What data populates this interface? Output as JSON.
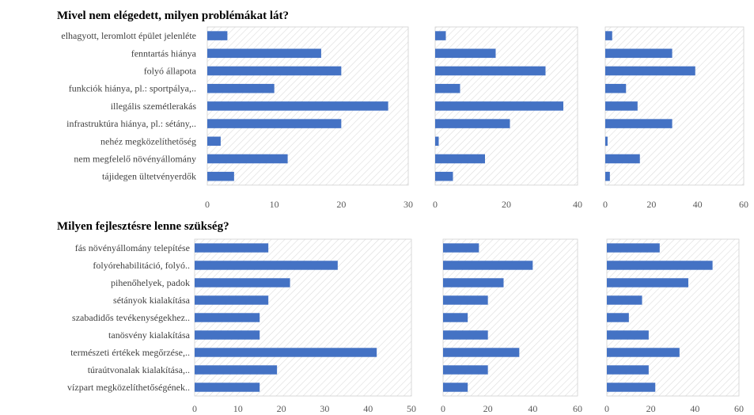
{
  "colors": {
    "bar": "#4472C4",
    "plot_hatch": "#d9d9d9",
    "plot_border": "#d0d0d0",
    "plot_background": "#ffffff"
  },
  "sections": [
    {
      "title": "Mivel nem elégedett, milyen problémákat lát?",
      "categories": [
        "elhagyott, leromlott épület jelenléte",
        "fenntartás hiánya",
        "folyó állapota",
        "funkciók hiánya, pl.: sportpálya,..",
        "illegális szemétlerakás",
        "infrastruktúra hiánya, pl.: sétány,..",
        "nehéz megközelíthetőség",
        "nem megfelelő növényállomány",
        "tájidegen ültetvényerdők"
      ]
    },
    {
      "title": "Milyen fejlesztésre lenne szükség?",
      "categories": [
        "fás növényállomány telepítése",
        "folyórehabilitáció, folyó..",
        "pihenőhelyek, padok",
        "sétányok kialakítása",
        "szabadidős tevékenységekhez..",
        "tanösvény kialakítása",
        "természeti értékek megőrzése,..",
        "túraútvonalak kialakítása,..",
        "vízpart megközelíthetőségének.."
      ]
    }
  ],
  "chart_data": [
    {
      "type": "bar",
      "orientation": "horizontal",
      "section": 0,
      "values": [
        3,
        17,
        20,
        10,
        27,
        20,
        2,
        12,
        4
      ],
      "xlim": [
        0,
        30
      ],
      "xticks": [
        0,
        10,
        20,
        30
      ],
      "grid": false
    },
    {
      "type": "bar",
      "orientation": "horizontal",
      "section": 0,
      "values": [
        3,
        17,
        31,
        7,
        36,
        21,
        1,
        14,
        5
      ],
      "xlim": [
        0,
        40
      ],
      "xticks": [
        0,
        20,
        40
      ],
      "grid": false
    },
    {
      "type": "bar",
      "orientation": "horizontal",
      "section": 0,
      "values": [
        3,
        29,
        39,
        9,
        14,
        29,
        1,
        15,
        2
      ],
      "xlim": [
        0,
        60
      ],
      "xticks": [
        0,
        20,
        40,
        60
      ],
      "grid": false
    },
    {
      "type": "bar",
      "orientation": "horizontal",
      "section": 1,
      "values": [
        17,
        33,
        22,
        17,
        15,
        15,
        42,
        19,
        15
      ],
      "xlim": [
        0,
        50
      ],
      "xticks": [
        0,
        10,
        20,
        30,
        40,
        50
      ],
      "grid": false
    },
    {
      "type": "bar",
      "orientation": "horizontal",
      "section": 1,
      "values": [
        16,
        40,
        27,
        20,
        11,
        20,
        34,
        20,
        11
      ],
      "xlim": [
        0,
        60
      ],
      "xticks": [
        0,
        20,
        40,
        60
      ],
      "grid": false
    },
    {
      "type": "bar",
      "orientation": "horizontal",
      "section": 1,
      "values": [
        24,
        48,
        37,
        16,
        10,
        19,
        33,
        19,
        22
      ],
      "xlim": [
        0,
        60
      ],
      "xticks": [
        0,
        20,
        40,
        60
      ],
      "grid": false
    }
  ]
}
